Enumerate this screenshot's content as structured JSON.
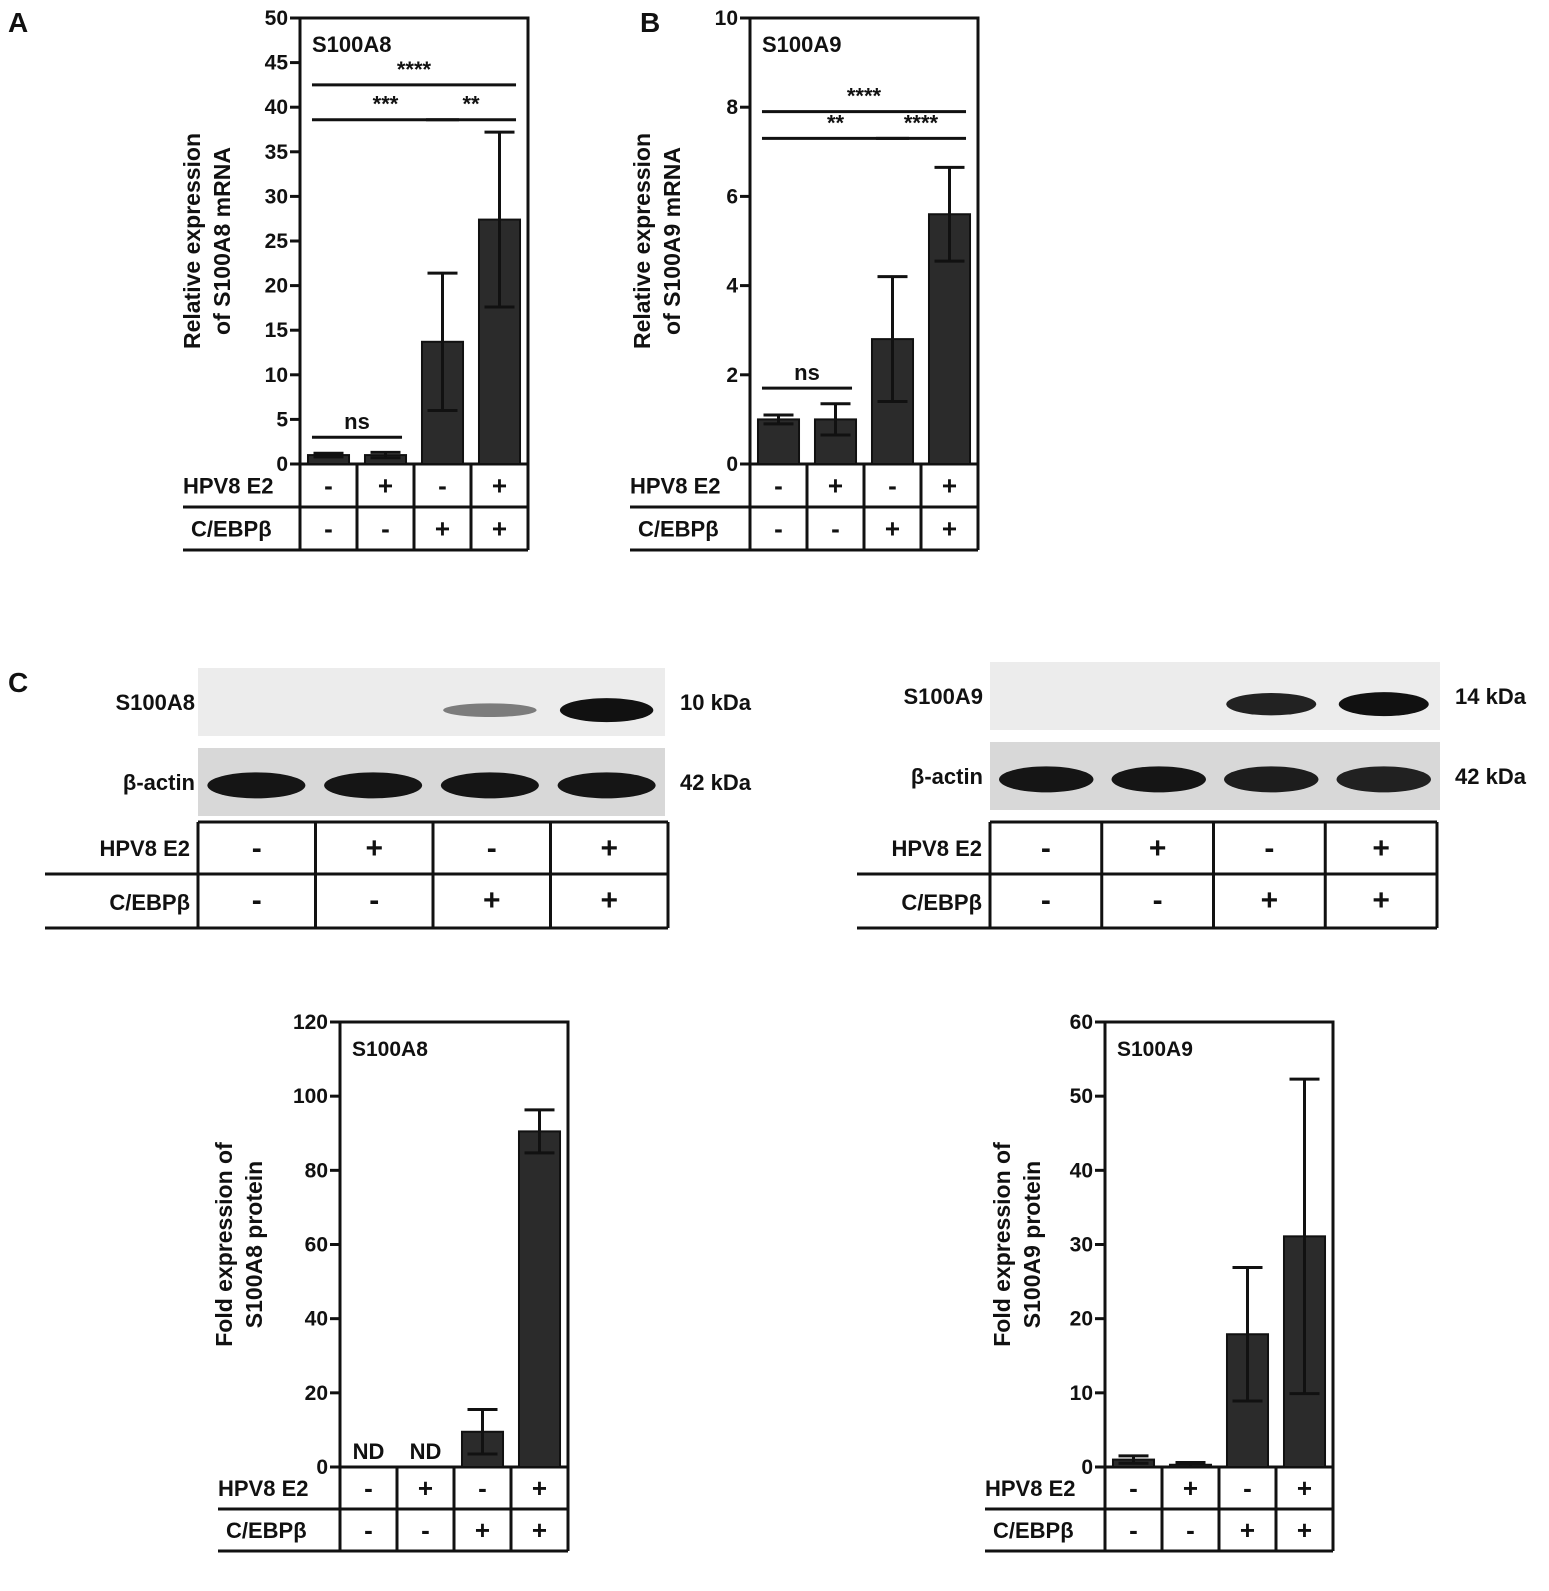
{
  "panel_labels": {
    "a": "A",
    "b": "B",
    "c": "C"
  },
  "row_labels": {
    "hpv": "HPV8 E2",
    "cebp": "C/EBPβ"
  },
  "conditions": {
    "hpv": [
      "-",
      "+",
      "-",
      "+"
    ],
    "cebp": [
      "-",
      "-",
      "+",
      "+"
    ]
  },
  "blot_left": {
    "target_label": "S100A8",
    "target_kda": "10 kDa",
    "actin_label": "β-actin",
    "actin_kda": "42 kDa",
    "target_band_intensity": [
      0,
      0,
      0.35,
      1.0
    ],
    "actin_band_intensity": [
      1,
      1,
      1,
      1
    ]
  },
  "blot_right": {
    "target_label": "S100A9",
    "target_kda": "14 kDa",
    "actin_label": "β-actin",
    "actin_kda": "42 kDa",
    "target_band_intensity": [
      0,
      0,
      0.9,
      1.0
    ],
    "actin_band_intensity": [
      1,
      1,
      0.9,
      0.85
    ]
  },
  "chart_data": [
    {
      "id": "A",
      "type": "bar",
      "title": "S100A8",
      "ylabel": [
        "Relative expression",
        "of S100A8 mRNA"
      ],
      "ylim": [
        0,
        50
      ],
      "yticks": [
        0,
        5,
        10,
        15,
        20,
        25,
        30,
        35,
        40,
        45,
        50
      ],
      "values": [
        1.0,
        1.0,
        13.7,
        27.4
      ],
      "errors": [
        0.2,
        0.3,
        7.7,
        9.8
      ],
      "bar_labels": [
        "",
        "",
        "",
        ""
      ],
      "significance": [
        {
          "from": 0,
          "to": 1,
          "label": "ns",
          "y": 3.0
        },
        {
          "from": 0,
          "to": 2,
          "label": "***",
          "y": 38.6
        },
        {
          "from": 2,
          "to": 3,
          "label": "**",
          "y": 38.6
        },
        {
          "from": 0,
          "to": 3,
          "label": "****",
          "y": 42.5
        }
      ]
    },
    {
      "id": "B",
      "type": "bar",
      "title": "S100A9",
      "ylabel": [
        "Relative expression",
        "of S100A9 mRNA"
      ],
      "ylim": [
        0,
        10
      ],
      "yticks": [
        0,
        2,
        4,
        6,
        8,
        10
      ],
      "values": [
        1.0,
        1.0,
        2.8,
        5.6
      ],
      "errors": [
        0.1,
        0.35,
        1.4,
        1.05
      ],
      "bar_labels": [
        "",
        "",
        "",
        ""
      ],
      "significance": [
        {
          "from": 0,
          "to": 1,
          "label": "ns",
          "y": 1.7
        },
        {
          "from": 0,
          "to": 2,
          "label": "**",
          "y": 7.3
        },
        {
          "from": 2,
          "to": 3,
          "label": "****",
          "y": 7.3
        },
        {
          "from": 0,
          "to": 3,
          "label": "****",
          "y": 7.9
        }
      ]
    },
    {
      "id": "C1",
      "type": "bar",
      "title": "S100A8",
      "ylabel": [
        "Fold expression of",
        "S100A8 protein"
      ],
      "ylim": [
        0,
        120
      ],
      "yticks": [
        0,
        20,
        40,
        60,
        80,
        100,
        120
      ],
      "values": [
        0,
        0,
        9.5,
        90.5
      ],
      "errors": [
        0,
        0,
        6,
        5.8
      ],
      "bar_labels": [
        "ND",
        "ND",
        "",
        ""
      ],
      "significance": []
    },
    {
      "id": "C2",
      "type": "bar",
      "title": "S100A9",
      "ylabel": [
        "Fold expression of",
        "S100A9 protein"
      ],
      "ylim": [
        0,
        60
      ],
      "yticks": [
        0,
        10,
        20,
        30,
        40,
        50,
        60
      ],
      "values": [
        1.0,
        0.3,
        17.9,
        31.1
      ],
      "errors": [
        0.5,
        0.3,
        9,
        21.2
      ],
      "bar_labels": [
        "",
        "",
        "",
        ""
      ],
      "significance": []
    }
  ]
}
